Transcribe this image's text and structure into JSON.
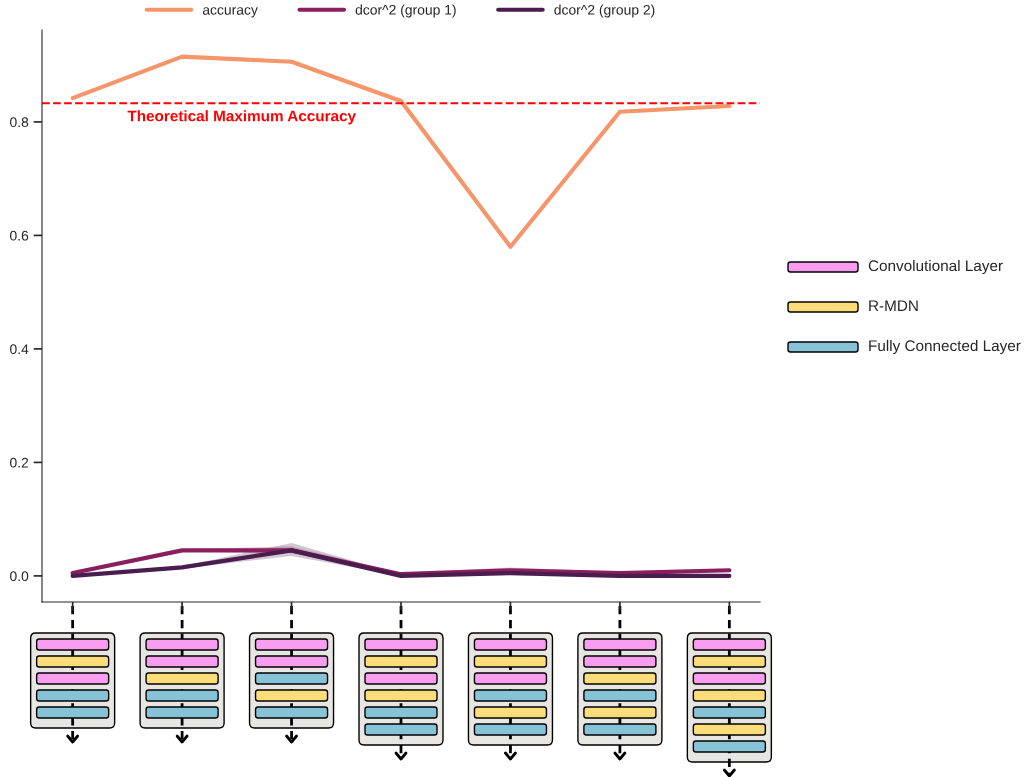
{
  "chart_data": {
    "type": "line",
    "categories": [
      null,
      null,
      null,
      null,
      null,
      null,
      null
    ],
    "series": [
      {
        "name": "accuracy",
        "color": "#f5956a",
        "values": [
          0.842,
          0.915,
          0.906,
          0.837,
          0.58,
          0.818,
          0.828
        ]
      },
      {
        "name": "dcor^2 (group 1)",
        "color": "#8a1f5e",
        "values": [
          0.005,
          0.045,
          0.045,
          0.003,
          0.01,
          0.005,
          0.01
        ],
        "lower": [
          0.003,
          0.043,
          0.04,
          0.001,
          0.006,
          0.003,
          0.008
        ],
        "upper": [
          0.007,
          0.047,
          0.052,
          0.005,
          0.015,
          0.007,
          0.012
        ]
      },
      {
        "name": "dcor^2 (group 2)",
        "color": "#4a1d4e",
        "values": [
          0.0,
          0.015,
          0.045,
          0.0,
          0.005,
          0.0,
          0.0
        ],
        "lower": [
          0.0,
          0.013,
          0.035,
          0.0,
          0.003,
          0.0,
          0.0
        ],
        "upper": [
          0.002,
          0.017,
          0.058,
          0.002,
          0.008,
          0.002,
          0.002
        ]
      }
    ],
    "ylim": [
      -0.046,
      0.962
    ],
    "yticks": [
      {
        "value": 0,
        "label": "0.0"
      },
      0.2,
      0.4,
      0.6,
      0.8
    ],
    "ref_lines": [
      {
        "axis": "y",
        "value": 0.833,
        "label": "Theoretical Maximum Accuracy",
        "color": "#ff0000",
        "line_style": "dashed"
      }
    ],
    "annotations": [
      "Convolutional Layer",
      "R-MDN",
      "Fully Connected Layer"
    ],
    "legend": "top",
    "grid": false,
    "line_style": "solid",
    "marker": "none"
  }
}
